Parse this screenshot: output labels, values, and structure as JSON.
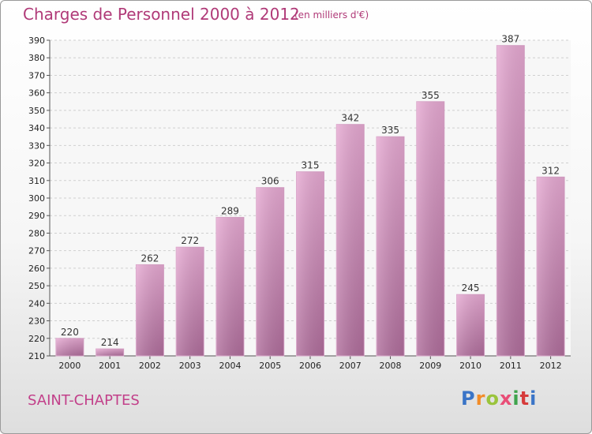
{
  "title": "Charges de Personnel 2000 à 2012",
  "unit_note": "(en milliers d'€)",
  "commune": "SAINT-CHAPTES",
  "logo_text": "Proxiti",
  "colors": {
    "bar": "#c77fb0",
    "title": "#b03a78",
    "commune": "#c2408a"
  },
  "chart_data": {
    "type": "bar",
    "categories": [
      "2000",
      "2001",
      "2002",
      "2003",
      "2004",
      "2005",
      "2006",
      "2007",
      "2008",
      "2009",
      "2010",
      "2011",
      "2012"
    ],
    "values": [
      220,
      214,
      262,
      272,
      289,
      306,
      315,
      342,
      335,
      355,
      245,
      387,
      312
    ],
    "ylim": [
      210,
      390
    ],
    "yticks": [
      210,
      220,
      230,
      240,
      250,
      260,
      270,
      280,
      290,
      300,
      310,
      320,
      330,
      340,
      350,
      360,
      370,
      380,
      390
    ],
    "grid": true,
    "xlabel": "",
    "ylabel": ""
  }
}
